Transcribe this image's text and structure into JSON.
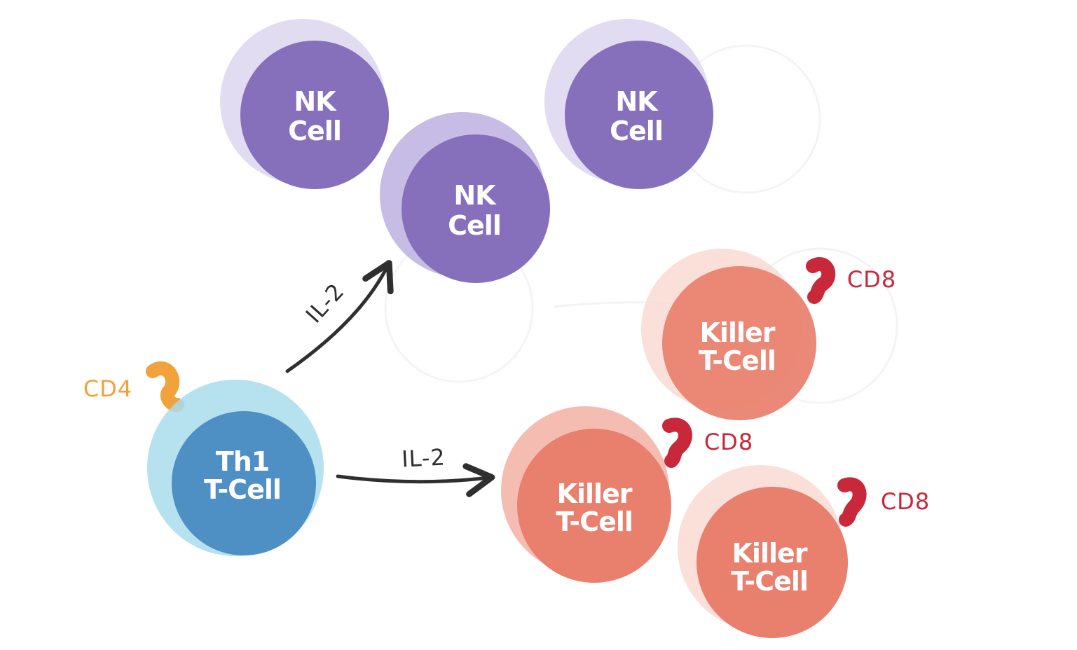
{
  "colors": {
    "nk": "#8670bb",
    "nk_rim": "#c9bfe6",
    "killer": "#e97f6d",
    "killer_rim": "#f9d4cc",
    "th1": "#4e8fc4",
    "th1_rim": "#a9dcec",
    "cd4": "#f2a23a",
    "cd8": "#c8283a",
    "arrow": "#2f2f2f"
  },
  "cells": {
    "nk_1": {
      "line1": "NK",
      "line2": "Cell"
    },
    "nk_2": {
      "line1": "NK",
      "line2": "Cell"
    },
    "nk_3": {
      "line1": "NK",
      "line2": "Cell"
    },
    "th1": {
      "line1": "Th1",
      "line2": "T-Cell"
    },
    "killer_1": {
      "line1": "Killer",
      "line2": "T-Cell"
    },
    "killer_2": {
      "line1": "Killer",
      "line2": "T-Cell"
    },
    "killer_3": {
      "line1": "Killer",
      "line2": "T-Cell"
    }
  },
  "markers": {
    "cd4": "CD4",
    "cd8_1": "CD8",
    "cd8_2": "CD8",
    "cd8_3": "CD8"
  },
  "arrows": {
    "to_nk": "IL-2",
    "to_killer": "IL-2"
  }
}
